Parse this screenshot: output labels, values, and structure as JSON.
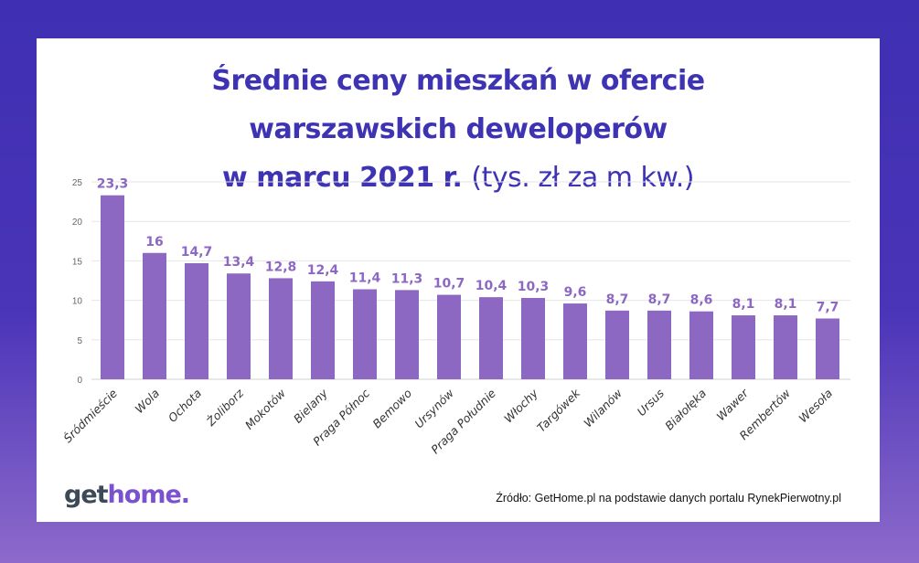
{
  "title": {
    "line1": "Średnie ceny mieszkań w ofercie",
    "line2": "warszawskich deweloperów",
    "line3_bold": "w marcu 2021 r.",
    "line3_unit": "(tys. zł za m kw.)"
  },
  "logo": {
    "part1": "get",
    "part2": "home."
  },
  "source": "Źródło: GetHome.pl na podstawie danych portalu RynekPierwotny.pl",
  "colors": {
    "bar": "#8d68c2",
    "label": "#8d68c2",
    "title": "#3e33b3",
    "background_top": "#3f2fb2",
    "background_bottom": "#8d6acb"
  },
  "chart_data": {
    "type": "bar",
    "title": "Średnie ceny mieszkań w ofercie warszawskich deweloperów w marcu 2021 r. (tys. zł za m kw.)",
    "categories": [
      "Śródmieście",
      "Wola",
      "Ochota",
      "Żoliborz",
      "Mokotów",
      "Bielany",
      "Praga Północ",
      "Bemowo",
      "Ursynów",
      "Praga Południe",
      "Włochy",
      "Targówek",
      "Wilanów",
      "Ursus",
      "Białołęka",
      "Wawer",
      "Rembertów",
      "Wesoła"
    ],
    "values": [
      23.3,
      16,
      14.7,
      13.4,
      12.8,
      12.4,
      11.4,
      11.3,
      10.7,
      10.4,
      10.3,
      9.6,
      8.7,
      8.7,
      8.6,
      8.1,
      8.1,
      7.7
    ],
    "data_labels": [
      "23,3",
      "16",
      "14,7",
      "13,4",
      "12,8",
      "12,4",
      "11,4",
      "11,3",
      "10,7",
      "10,4",
      "10,3",
      "9,6",
      "8,7",
      "8,7",
      "8,6",
      "8,1",
      "8,1",
      "7,7"
    ],
    "yticks": [
      "0",
      "5",
      "10",
      "15",
      "20",
      "25"
    ],
    "ylim": [
      0,
      25
    ],
    "grid": true,
    "legend": "none"
  }
}
